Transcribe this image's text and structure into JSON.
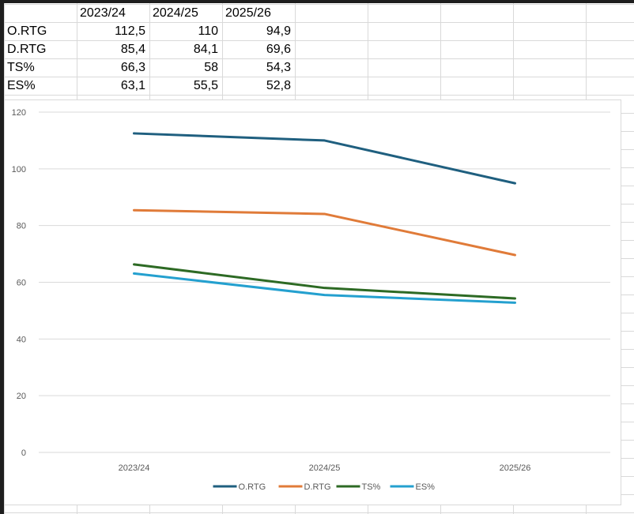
{
  "table": {
    "headers": [
      "",
      "2023/24",
      "2024/25",
      "2025/26"
    ],
    "rows": [
      {
        "label": "O.RTG",
        "values": [
          "112,5",
          "110",
          "94,9"
        ]
      },
      {
        "label": "D.RTG",
        "values": [
          "85,4",
          "84,1",
          "69,6"
        ]
      },
      {
        "label": "TS%",
        "values": [
          "66,3",
          "58",
          "54,3"
        ]
      },
      {
        "label": "ES%",
        "values": [
          "63,1",
          "55,5",
          "52,8"
        ]
      }
    ]
  },
  "chart_data": {
    "type": "line",
    "title": "",
    "xlabel": "",
    "ylabel": "",
    "categories": [
      "2023/24",
      "2024/25",
      "2025/26"
    ],
    "ylim": [
      0,
      120
    ],
    "yticks": [
      0,
      20,
      40,
      60,
      80,
      100,
      120
    ],
    "grid": true,
    "legend": "bottom",
    "series": [
      {
        "name": "O.RTG",
        "values": [
          112.5,
          110,
          94.9
        ],
        "color": "#1f5f7f"
      },
      {
        "name": "D.RTG",
        "values": [
          85.4,
          84.1,
          69.6
        ],
        "color": "#e07b39"
      },
      {
        "name": "TS%",
        "values": [
          66.3,
          58,
          54.3
        ],
        "color": "#2d6a24"
      },
      {
        "name": "ES%",
        "values": [
          63.1,
          55.5,
          52.8
        ],
        "color": "#24a0cf"
      }
    ]
  }
}
